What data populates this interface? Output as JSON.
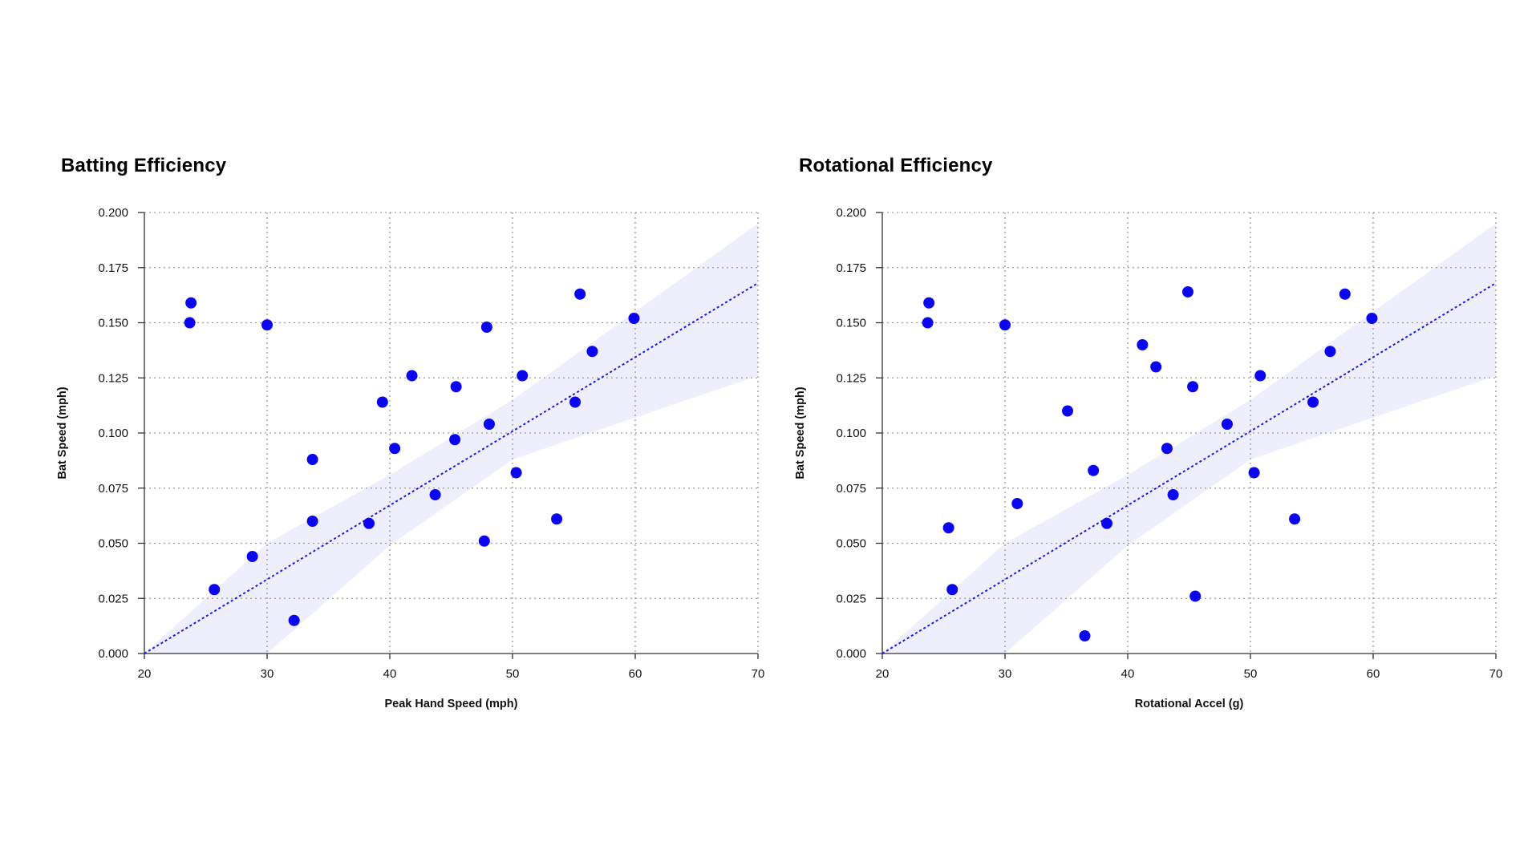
{
  "chart_data": [
    {
      "type": "scatter",
      "title": "Batting Efficiency",
      "xlabel": "Peak Hand Speed (mph)",
      "ylabel": "Bat Speed (mph)",
      "xlim": [
        20,
        70
      ],
      "ylim": [
        0,
        0.2
      ],
      "xticks": [
        "20",
        "30",
        "40",
        "50",
        "60",
        "70"
      ],
      "yticks": [
        "0.000",
        "0.025",
        "0.050",
        "0.075",
        "0.100",
        "0.125",
        "0.150",
        "0.175",
        "0.200"
      ],
      "grid": true,
      "points_color": "#0a05ee",
      "x": [
        23.8,
        23.7,
        30.0,
        28.8,
        25.7,
        32.2,
        33.7,
        33.7,
        38.3,
        39.4,
        40.4,
        41.8,
        43.7,
        45.3,
        45.4,
        47.7,
        47.9,
        48.1,
        50.3,
        50.8,
        53.6,
        55.1,
        55.5,
        56.5,
        59.9
      ],
      "y": [
        0.159,
        0.15,
        0.149,
        0.044,
        0.029,
        0.015,
        0.088,
        0.06,
        0.059,
        0.114,
        0.093,
        0.126,
        0.072,
        0.097,
        0.121,
        0.051,
        0.148,
        0.104,
        0.082,
        0.126,
        0.061,
        0.114,
        0.163,
        0.137,
        0.152
      ],
      "fit_line": {
        "x": [
          20,
          70
        ],
        "y": [
          0.0,
          0.168
        ],
        "color": "#1a1adf"
      },
      "confidence_band": {
        "x": [
          20,
          30,
          40,
          50,
          60,
          70
        ],
        "lower": [
          0.0,
          0.0,
          0.049,
          0.088,
          0.107,
          0.126
        ],
        "upper": [
          0.0,
          0.05,
          0.081,
          0.115,
          0.155,
          0.195
        ],
        "color": "#eeeefc"
      }
    },
    {
      "type": "scatter",
      "title": "Rotational Efficiency",
      "xlabel": "Rotational Accel (g)",
      "ylabel": "Bat Speed (mph)",
      "xlim": [
        20,
        70
      ],
      "ylim": [
        0,
        0.2
      ],
      "xticks": [
        "20",
        "30",
        "40",
        "50",
        "60",
        "70"
      ],
      "yticks": [
        "0.000",
        "0.025",
        "0.050",
        "0.075",
        "0.100",
        "0.125",
        "0.150",
        "0.175",
        "0.200"
      ],
      "grid": true,
      "points_color": "#0a05ee",
      "x": [
        23.8,
        23.7,
        30.0,
        25.4,
        25.7,
        31.0,
        35.1,
        36.5,
        37.2,
        38.3,
        41.2,
        42.3,
        43.2,
        43.7,
        44.9,
        45.3,
        45.5,
        48.1,
        50.3,
        50.8,
        53.6,
        55.1,
        56.5,
        57.7,
        59.9
      ],
      "y": [
        0.159,
        0.15,
        0.149,
        0.057,
        0.029,
        0.068,
        0.11,
        0.008,
        0.083,
        0.059,
        0.14,
        0.13,
        0.093,
        0.072,
        0.164,
        0.121,
        0.026,
        0.104,
        0.082,
        0.126,
        0.061,
        0.114,
        0.137,
        0.163,
        0.152
      ],
      "fit_line": {
        "x": [
          20,
          70
        ],
        "y": [
          0.0,
          0.168
        ],
        "color": "#1a1adf"
      },
      "confidence_band": {
        "x": [
          20,
          30,
          40,
          50,
          60,
          70
        ],
        "lower": [
          0.0,
          0.0,
          0.049,
          0.088,
          0.107,
          0.126
        ],
        "upper": [
          0.0,
          0.05,
          0.081,
          0.115,
          0.155,
          0.195
        ],
        "color": "#eeeefc"
      }
    }
  ]
}
